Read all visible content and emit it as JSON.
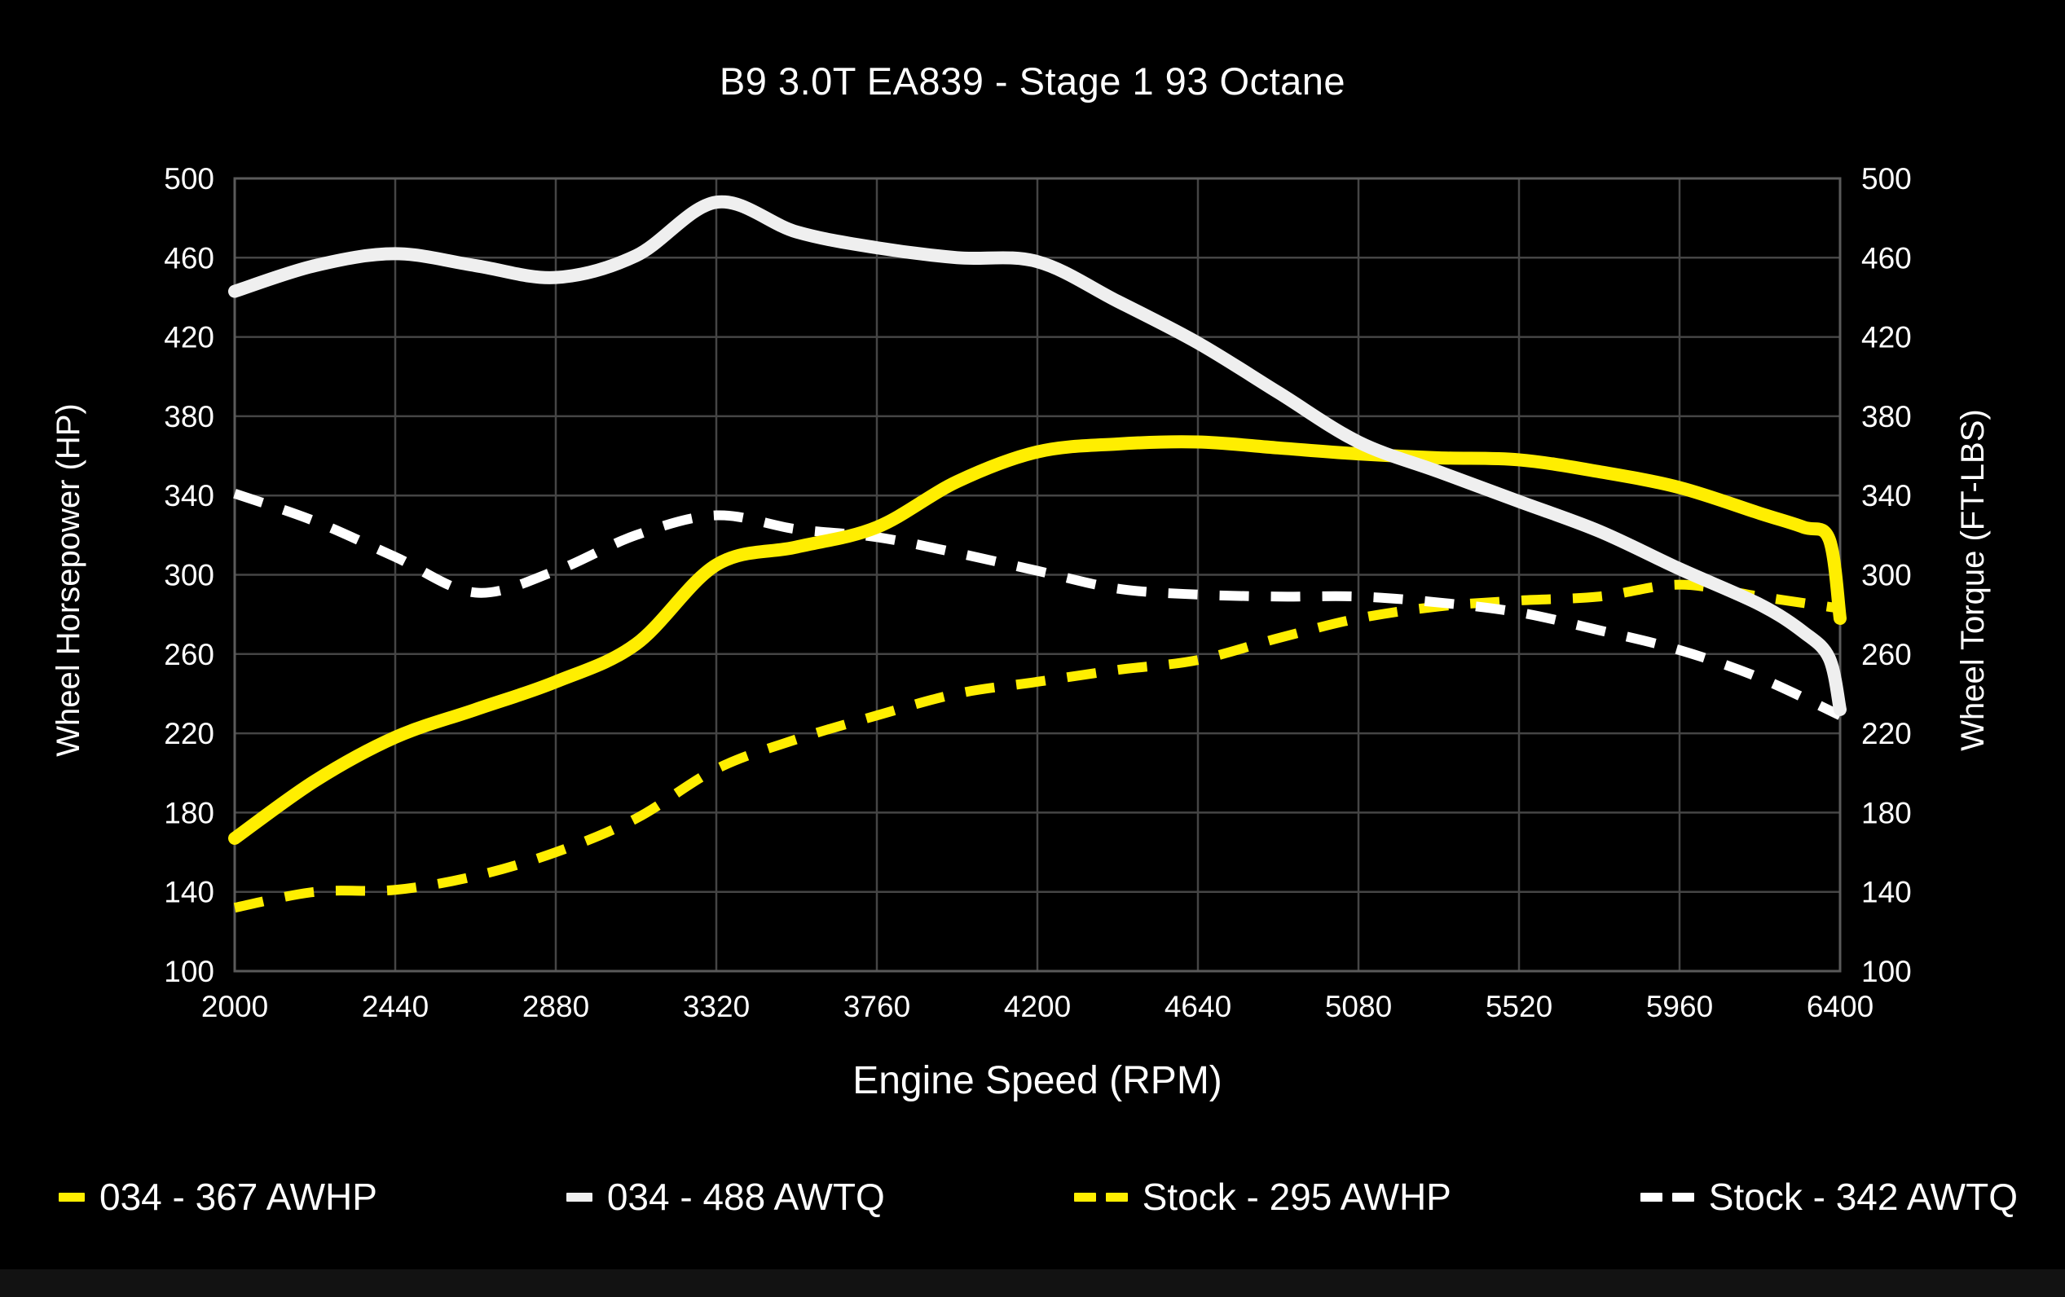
{
  "title": "B9 3.0T EA839 - Stage 1 93 Octane",
  "chart_data": {
    "type": "line",
    "title": "B9 3.0T EA839 - Stage 1 93 Octane",
    "xlabel": "Engine Speed (RPM)",
    "ylabel_left": "Wheel Horsepower (HP)",
    "ylabel_right": "Wheel Torque (FT-LBS)",
    "xlim": [
      2000,
      6400
    ],
    "ylim": [
      100,
      500
    ],
    "x_ticks": [
      2000,
      2440,
      2880,
      3320,
      3760,
      4200,
      4640,
      5080,
      5520,
      5960,
      6400
    ],
    "y_ticks_left": [
      100,
      140,
      180,
      220,
      260,
      300,
      340,
      380,
      420,
      460,
      500
    ],
    "y_ticks_right": [
      100,
      140,
      180,
      220,
      260,
      300,
      340,
      380,
      420,
      460,
      500
    ],
    "grid": true,
    "legend_position": "bottom",
    "colors": {
      "background": "#000000",
      "gridline": "#454545",
      "frame": "#5a5a5a",
      "text": "#ffffff",
      "accent_yellow": "#ffee00",
      "accent_white": "#efefef"
    },
    "series": [
      {
        "name": "034 - 367 AWHP",
        "color": "#ffee00",
        "style": "solid",
        "peak": 367,
        "x": [
          2000,
          2220,
          2440,
          2660,
          2880,
          3100,
          3320,
          3540,
          3760,
          3980,
          4200,
          4420,
          4640,
          4860,
          5080,
          5300,
          5520,
          5740,
          5960,
          6180,
          6300,
          6370,
          6400
        ],
        "values": [
          167,
          196,
          218,
          232,
          246,
          265,
          305,
          314,
          324,
          347,
          362,
          366,
          367,
          364,
          361,
          359,
          358,
          352,
          344,
          331,
          324,
          318,
          278
        ]
      },
      {
        "name": "034 - 488 AWTQ",
        "color": "#efefef",
        "style": "solid",
        "peak": 488,
        "x": [
          2000,
          2220,
          2440,
          2660,
          2880,
          3100,
          3320,
          3540,
          3760,
          3980,
          4200,
          4420,
          4640,
          4860,
          5080,
          5300,
          5520,
          5740,
          5960,
          6180,
          6300,
          6370,
          6400
        ],
        "values": [
          443,
          456,
          462,
          456,
          450,
          461,
          488,
          473,
          465,
          460,
          458,
          438,
          417,
          392,
          367,
          352,
          337,
          322,
          303,
          285,
          271,
          258,
          232
        ]
      },
      {
        "name": "Stock - 295 AWHP",
        "color": "#ffee00",
        "style": "dashed",
        "peak": 295,
        "x": [
          2000,
          2220,
          2440,
          2660,
          2880,
          3100,
          3320,
          3540,
          3760,
          3980,
          4200,
          4420,
          4640,
          4860,
          5080,
          5300,
          5520,
          5740,
          5960,
          6180,
          6400
        ],
        "values": [
          132,
          140,
          141,
          148,
          160,
          177,
          202,
          217,
          229,
          240,
          246,
          252,
          257,
          268,
          278,
          284,
          287,
          289,
          295,
          289,
          283
        ]
      },
      {
        "name": "Stock - 342 AWTQ",
        "color": "#ffffff",
        "style": "dashed",
        "peak": 342,
        "x": [
          2000,
          2220,
          2440,
          2660,
          2880,
          3100,
          3320,
          3540,
          3760,
          3980,
          4200,
          4420,
          4640,
          4860,
          5080,
          5300,
          5520,
          5740,
          5960,
          6180,
          6400
        ],
        "values": [
          341,
          327,
          309,
          291,
          302,
          320,
          330,
          323,
          319,
          311,
          302,
          293,
          290,
          289,
          289,
          286,
          281,
          272,
          262,
          248,
          229
        ]
      }
    ]
  }
}
